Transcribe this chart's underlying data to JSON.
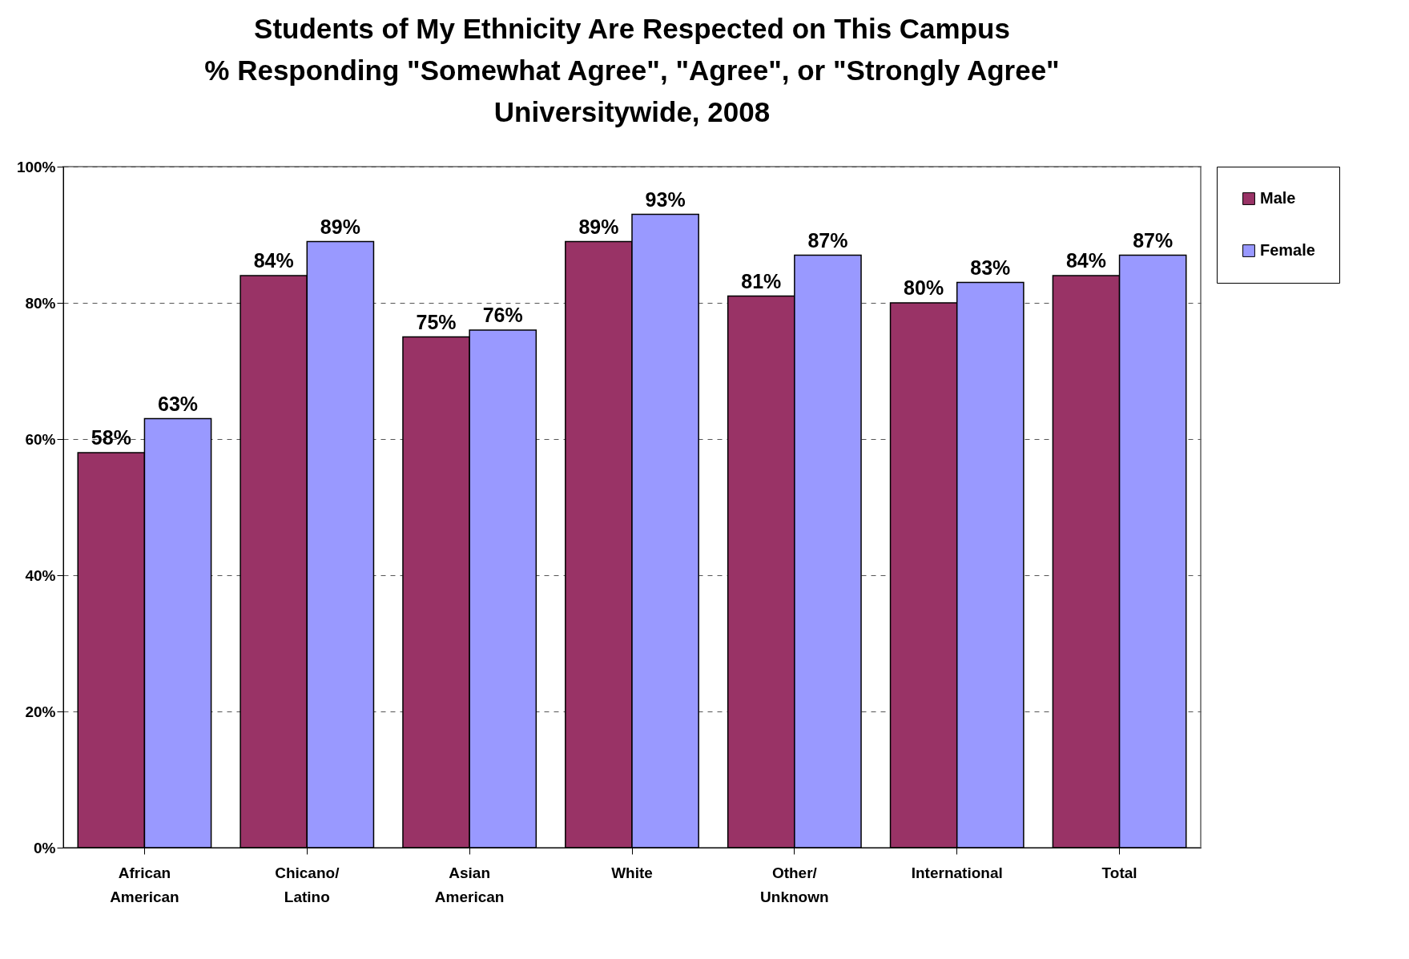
{
  "chart_data": {
    "type": "bar",
    "title": "Students of My Ethnicity Are Respected on This Campus\n% Responding \"Somewhat Agree\", \"Agree\", or \"Strongly Agree\"\nUniversitywide, 2008",
    "categories": [
      "African American",
      "Chicano/Latino",
      "Asian American",
      "White",
      "Other/Unknown",
      "International",
      "Total"
    ],
    "series": [
      {
        "name": "Male",
        "color": "#993366",
        "values": [
          58,
          84,
          75,
          89,
          81,
          80,
          84
        ],
        "value_labels": [
          "58%",
          "84%",
          "75%",
          "89%",
          "81%",
          "80%",
          "84%"
        ]
      },
      {
        "name": "Female",
        "color": "#9999ff",
        "values": [
          63,
          89,
          76,
          93,
          87,
          83,
          87
        ],
        "value_labels": [
          "63%",
          "89%",
          "76%",
          "93%",
          "87%",
          "83%",
          "87%"
        ]
      }
    ],
    "ylim": [
      0,
      100
    ],
    "yticks": [
      {
        "value": 0,
        "label": "0%"
      },
      {
        "value": 20,
        "label": "20%"
      },
      {
        "value": 40,
        "label": "40%"
      },
      {
        "value": 60,
        "label": "60%"
      },
      {
        "value": 80,
        "label": "80%"
      },
      {
        "value": 100,
        "label": "100%"
      }
    ],
    "grid": "y",
    "legend": "right"
  }
}
